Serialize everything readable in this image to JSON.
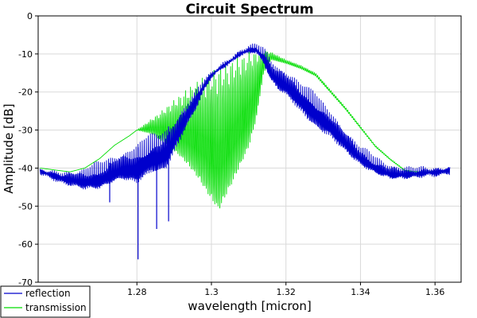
{
  "chart_data": {
    "type": "line",
    "title": "Circuit Spectrum",
    "xlabel": "wavelength [micron]",
    "ylabel": "Amplitude [dB]",
    "xlim": [
      1.2535,
      1.367
    ],
    "ylim": [
      -70,
      0
    ],
    "xticks": [
      1.28,
      1.3,
      1.32,
      1.34,
      1.36
    ],
    "xtick_labels": [
      "1.28",
      "1.3",
      "1.32",
      "1.34",
      "1.36"
    ],
    "yticks": [
      0,
      -10,
      -20,
      -30,
      -40,
      -50,
      -60,
      -70
    ],
    "ytick_labels": [
      "0",
      "-10",
      "-20",
      "-30",
      "-40",
      "-50",
      "-60",
      "-70"
    ],
    "grid": true,
    "legend_position": "bottom-left",
    "series": [
      {
        "name": "reflection",
        "color": "#0000cc",
        "line_kind": "noisy-upper-envelope",
        "envelope": [
          [
            1.254,
            -40.2
          ],
          [
            1.26,
            -40.5
          ],
          [
            1.266,
            -39.8
          ],
          [
            1.27,
            -38.3
          ],
          [
            1.274,
            -35.8
          ],
          [
            1.278,
            -33.8
          ],
          [
            1.282,
            -31.6
          ],
          [
            1.286,
            -29.6
          ],
          [
            1.29,
            -25.5
          ],
          [
            1.294,
            -21.0
          ],
          [
            1.298,
            -16.5
          ],
          [
            1.302,
            -13.3
          ],
          [
            1.306,
            -10.5
          ],
          [
            1.308,
            -9.1
          ],
          [
            1.31,
            -8.0
          ],
          [
            1.312,
            -7.6
          ],
          [
            1.314,
            -8.3
          ],
          [
            1.316,
            -11.0
          ],
          [
            1.318,
            -12.5
          ],
          [
            1.32,
            -13.2
          ],
          [
            1.322,
            -14.5
          ],
          [
            1.324,
            -16.5
          ],
          [
            1.328,
            -19.8
          ],
          [
            1.332,
            -23.8
          ],
          [
            1.336,
            -29.0
          ],
          [
            1.34,
            -34.0
          ],
          [
            1.344,
            -37.0
          ],
          [
            1.348,
            -39.0
          ],
          [
            1.352,
            -39.6
          ],
          [
            1.356,
            -39.8
          ],
          [
            1.36,
            -39.8
          ],
          [
            1.364,
            -39.2
          ]
        ],
        "depth": [
          [
            1.254,
            1
          ],
          [
            1.262,
            4
          ],
          [
            1.27,
            7
          ],
          [
            1.276,
            8
          ],
          [
            1.28,
            11
          ],
          [
            1.284,
            10
          ],
          [
            1.288,
            12
          ],
          [
            1.292,
            8
          ],
          [
            1.296,
            5
          ],
          [
            1.3,
            1
          ],
          [
            1.308,
            1
          ],
          [
            1.312,
            2
          ],
          [
            1.316,
            6
          ],
          [
            1.322,
            8
          ],
          [
            1.328,
            9
          ],
          [
            1.334,
            7
          ],
          [
            1.34,
            5
          ],
          [
            1.346,
            4
          ],
          [
            1.352,
            3
          ],
          [
            1.358,
            2
          ],
          [
            1.364,
            2
          ]
        ],
        "spikes": [
          [
            1.2727,
            -49
          ],
          [
            1.2803,
            -64
          ],
          [
            1.2853,
            -56
          ],
          [
            1.2885,
            -54
          ]
        ]
      },
      {
        "name": "transmission",
        "color": "#00dd00",
        "line_kind": "oscillating-upper-envelope",
        "envelope": [
          [
            1.254,
            -40.0
          ],
          [
            1.262,
            -41.0
          ],
          [
            1.266,
            -40.0
          ],
          [
            1.27,
            -37.5
          ],
          [
            1.274,
            -34.0
          ],
          [
            1.278,
            -31.5
          ],
          [
            1.282,
            -28.5
          ],
          [
            1.286,
            -25.5
          ],
          [
            1.29,
            -22.0
          ],
          [
            1.294,
            -18.5
          ],
          [
            1.298,
            -15.5
          ],
          [
            1.302,
            -13.0
          ],
          [
            1.306,
            -11.0
          ],
          [
            1.31,
            -9.5
          ],
          [
            1.314,
            -9.0
          ],
          [
            1.316,
            -9.5
          ],
          [
            1.32,
            -11.5
          ],
          [
            1.324,
            -13.0
          ],
          [
            1.328,
            -15.0
          ],
          [
            1.332,
            -19.5
          ],
          [
            1.336,
            -24.0
          ],
          [
            1.34,
            -29.0
          ],
          [
            1.344,
            -34.0
          ],
          [
            1.348,
            -37.5
          ],
          [
            1.352,
            -40.5
          ],
          [
            1.356,
            -41.0
          ],
          [
            1.36,
            -40.8
          ],
          [
            1.364,
            -41.0
          ]
        ],
        "depth": [
          [
            1.254,
            0
          ],
          [
            1.28,
            0
          ],
          [
            1.284,
            4
          ],
          [
            1.288,
            10
          ],
          [
            1.292,
            17
          ],
          [
            1.296,
            25
          ],
          [
            1.3,
            34
          ],
          [
            1.302,
            38
          ],
          [
            1.306,
            32
          ],
          [
            1.31,
            25
          ],
          [
            1.312,
            18
          ],
          [
            1.314,
            6
          ],
          [
            1.316,
            2
          ],
          [
            1.32,
            1
          ],
          [
            1.364,
            0
          ]
        ]
      }
    ]
  }
}
